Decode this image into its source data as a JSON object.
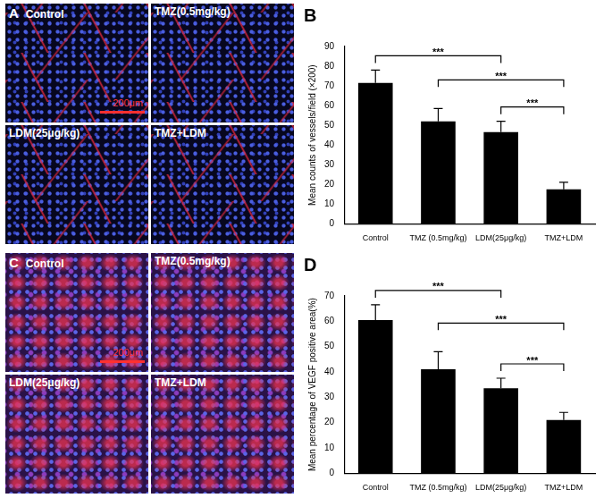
{
  "image_panels": [
    {
      "title": "A",
      "tiles": [
        "Control",
        "TMZ(0.5mg/kg)",
        "LDM(25μg/kg)",
        "TMZ+LDM"
      ],
      "scale_bar": "200μm"
    },
    {
      "title": "C",
      "tiles": [
        "Control",
        "TMZ(0.5mg/kg)",
        "LDM(25μg/kg)",
        "TMZ+LDM"
      ],
      "scale_bar": "200μm"
    }
  ],
  "chart_data": [
    {
      "type": "bar",
      "title": "B",
      "y_label": "Mean counts of vessels/field (×200)",
      "categories": [
        "Control",
        "TMZ (0.5mg/kg)",
        "LDM(25μg/kg)",
        "TMZ+LDM"
      ],
      "values": [
        71.5,
        52,
        46.5,
        17.5
      ],
      "errors": [
        6.5,
        6.5,
        5.5,
        3.5
      ],
      "color": "#000000",
      "ylim": [
        0,
        90
      ],
      "yticks": [
        0,
        10,
        20,
        30,
        40,
        50,
        60,
        70,
        80,
        90
      ],
      "grid": false,
      "annotations": [
        {
          "between": [
            "Control",
            "LDM(25μg/kg)"
          ],
          "label": "***"
        },
        {
          "between": [
            "TMZ (0.5mg/kg)",
            "TMZ+LDM"
          ],
          "label": "***"
        },
        {
          "between": [
            "LDM(25μg/kg)",
            "TMZ+LDM"
          ],
          "label": "***"
        }
      ]
    },
    {
      "type": "bar",
      "title": "D",
      "y_label": "Mean percentage of VEGF positive area(%)",
      "categories": [
        "Control",
        "TMZ (0.5mg/kg)",
        "LDM(25μg/kg)",
        "TMZ+LDM"
      ],
      "values": [
        60.5,
        41,
        33.5,
        21
      ],
      "errors": [
        6,
        7,
        4,
        3
      ],
      "color": "#000000",
      "ylim": [
        0,
        70
      ],
      "yticks": [
        0,
        10,
        20,
        30,
        40,
        50,
        60,
        70
      ],
      "grid": false,
      "annotations": [
        {
          "between": [
            "Control",
            "LDM(25μg/kg)"
          ],
          "label": "***"
        },
        {
          "between": [
            "TMZ (0.5mg/kg)",
            "TMZ+LDM"
          ],
          "label": "***"
        },
        {
          "between": [
            "LDM(25μg/kg)",
            "TMZ+LDM"
          ],
          "label": "***"
        }
      ]
    }
  ]
}
